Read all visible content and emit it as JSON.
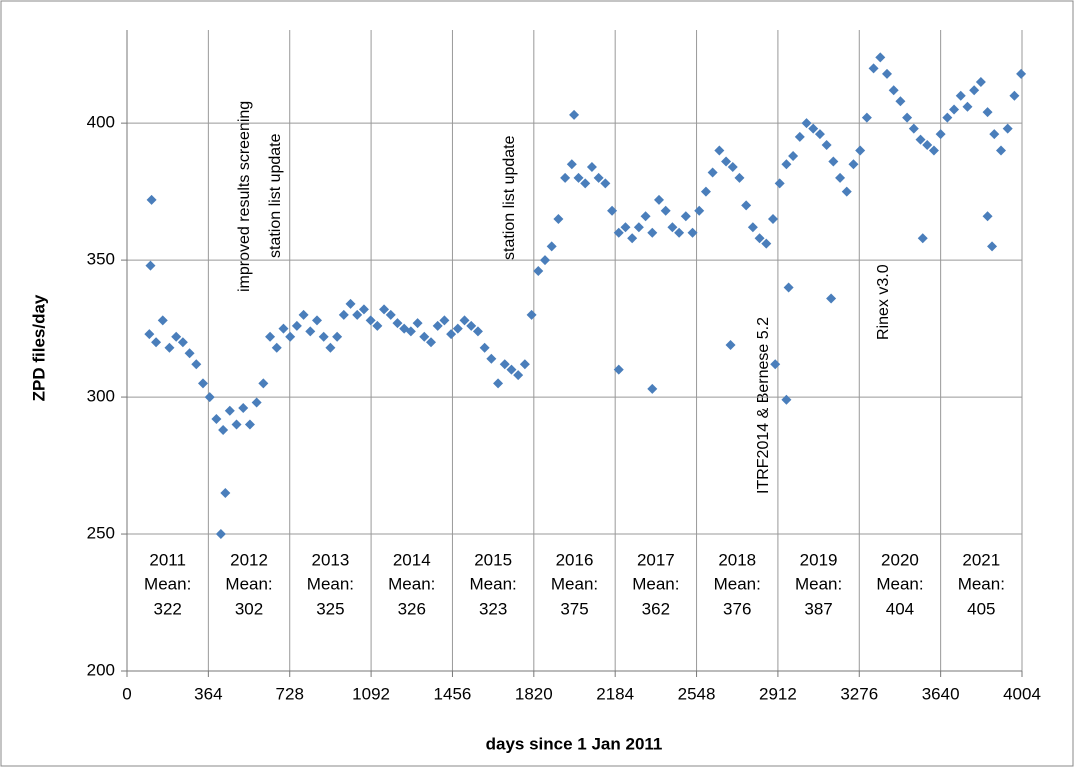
{
  "chart_data": {
    "type": "scatter",
    "y_axis_label": "ZPD files/day",
    "x_axis_label": "days since 1 Jan 2011",
    "xlim": [
      0,
      4004
    ],
    "xticks": [
      0,
      364,
      728,
      1092,
      1456,
      1820,
      2184,
      2548,
      2912,
      3276,
      3640,
      4004
    ],
    "ylim": [
      200,
      434
    ],
    "yticks": [
      200,
      250,
      300,
      350,
      400
    ],
    "grid": true,
    "series": [
      {
        "name": "ZPD files/day",
        "color": "#4a7ebb",
        "x": [
          100,
          130,
          160,
          190,
          220,
          250,
          280,
          310,
          340,
          370,
          400,
          430,
          460,
          490,
          520,
          550,
          580,
          610,
          640,
          670,
          700,
          730,
          760,
          790,
          820,
          850,
          880,
          910,
          940,
          970,
          1000,
          1030,
          1060,
          1090,
          1120,
          1150,
          1180,
          1210,
          1240,
          1270,
          1300,
          1330,
          1360,
          1390,
          1420,
          1450,
          1480,
          1510,
          1540,
          1570,
          1600,
          1630,
          1660,
          1690,
          1720,
          1750,
          1780,
          1810,
          1840,
          1870,
          1900,
          1930,
          1960,
          1990,
          2020,
          2050,
          2080,
          2110,
          2140,
          2170,
          2200,
          2230,
          2260,
          2290,
          2320,
          2350,
          2380,
          2410,
          2440,
          2470,
          2500,
          2530,
          2560,
          2590,
          2620,
          2650,
          2680,
          2710,
          2740,
          2770,
          2800,
          2830,
          2860,
          2890,
          2920,
          2950,
          2980,
          3010,
          3040,
          3070,
          3100,
          3130,
          3160,
          3190,
          3220,
          3250,
          3280,
          3310,
          3340,
          3370,
          3400,
          3430,
          3460,
          3490,
          3520,
          3550,
          3580,
          3610,
          3640,
          3670,
          3700,
          3730,
          3760,
          3790,
          3820,
          3850,
          3880,
          3910,
          3940,
          3970,
          4000,
          110,
          105,
          420,
          440,
          2000,
          2200,
          2350,
          2700,
          2900,
          2950,
          2960,
          3150,
          3560,
          3870,
          3850
        ],
        "values": [
          323,
          320,
          328,
          318,
          322,
          320,
          316,
          312,
          305,
          300,
          292,
          288,
          295,
          290,
          296,
          290,
          298,
          305,
          322,
          318,
          325,
          322,
          326,
          330,
          324,
          328,
          322,
          318,
          322,
          330,
          334,
          330,
          332,
          328,
          326,
          332,
          330,
          327,
          325,
          324,
          327,
          322,
          320,
          326,
          328,
          323,
          325,
          328,
          326,
          324,
          318,
          314,
          305,
          312,
          310,
          308,
          312,
          330,
          346,
          350,
          355,
          365,
          380,
          385,
          380,
          378,
          384,
          380,
          378,
          368,
          360,
          362,
          358,
          362,
          366,
          360,
          372,
          368,
          362,
          360,
          366,
          360,
          368,
          375,
          382,
          390,
          386,
          384,
          380,
          370,
          362,
          358,
          356,
          365,
          378,
          385,
          388,
          395,
          400,
          398,
          396,
          392,
          386,
          380,
          375,
          385,
          390,
          402,
          420,
          424,
          418,
          412,
          408,
          402,
          398,
          394,
          392,
          390,
          396,
          402,
          405,
          410,
          406,
          412,
          415,
          404,
          396,
          390,
          398,
          410,
          418,
          372,
          348,
          250,
          265,
          403,
          310,
          303,
          319,
          312,
          299,
          340,
          336,
          358,
          355,
          366
        ]
      }
    ],
    "annotations": [
      "improved results screening",
      "station list update",
      "station list update",
      "ITRF2014 & Bernese 5.2",
      "Rinex v3.0"
    ],
    "year_stats": [
      {
        "year": "2011",
        "label": "Mean:",
        "mean": 322
      },
      {
        "year": "2012",
        "label": "Mean:",
        "mean": 302
      },
      {
        "year": "2013",
        "label": "Mean:",
        "mean": 325
      },
      {
        "year": "2014",
        "label": "Mean:",
        "mean": 326
      },
      {
        "year": "2015",
        "label": "Mean:",
        "mean": 323
      },
      {
        "year": "2016",
        "label": "Mean:",
        "mean": 375
      },
      {
        "year": "2017",
        "label": "Mean:",
        "mean": 362
      },
      {
        "year": "2018",
        "label": "Mean:",
        "mean": 376
      },
      {
        "year": "2019",
        "label": "Mean:",
        "mean": 387
      },
      {
        "year": "2020",
        "label": "Mean:",
        "mean": 404
      },
      {
        "year": "2021",
        "label": "Mean:",
        "mean": 405
      }
    ]
  }
}
